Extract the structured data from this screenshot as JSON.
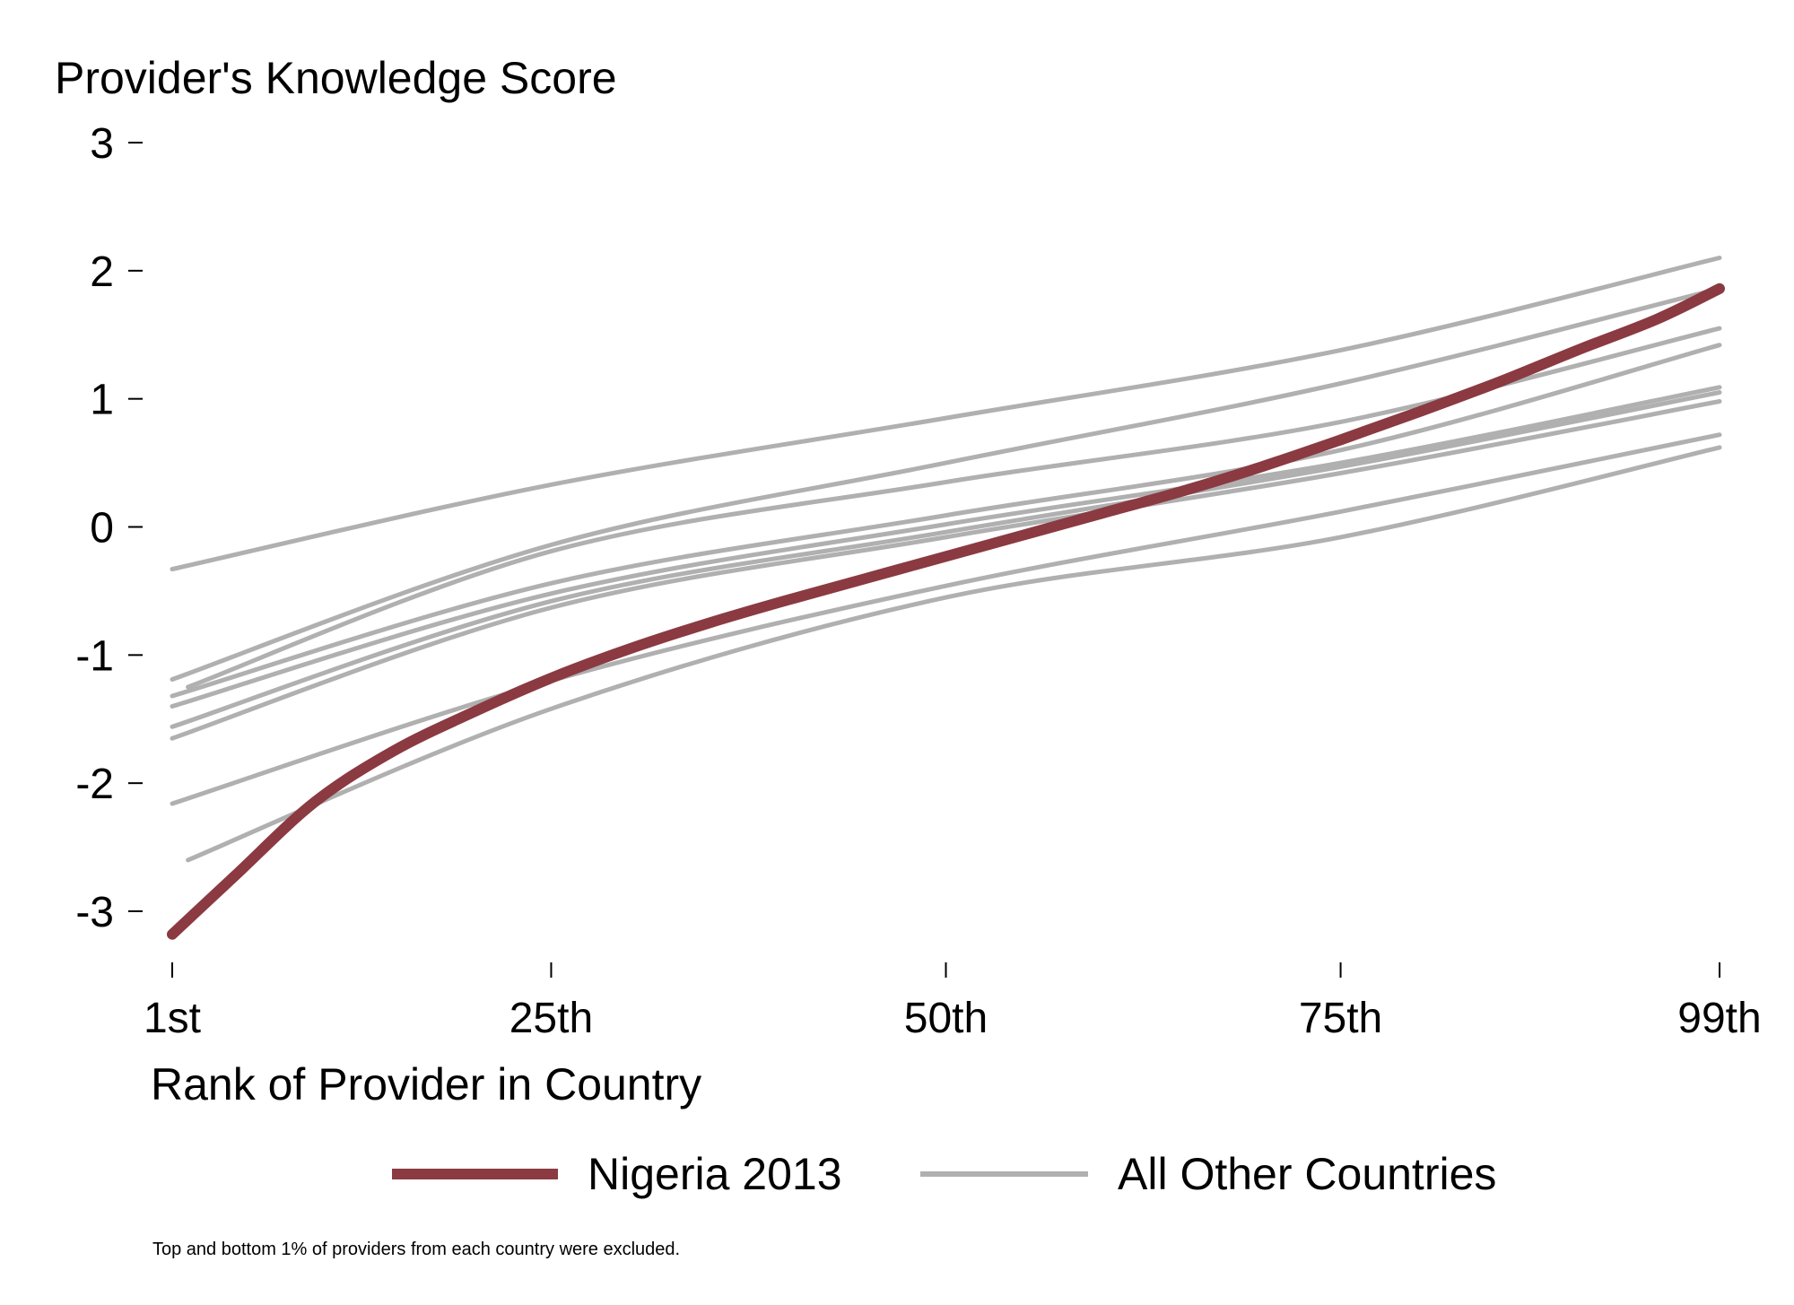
{
  "chart_data": {
    "type": "line",
    "ylabel": "Provider's Knowledge Score",
    "xlabel": "Rank of Provider in Country",
    "note": "Top and bottom 1% of providers from each country were excluded.",
    "x_ticks": [
      {
        "value": 1,
        "label": "1st"
      },
      {
        "value": 25,
        "label": "25th"
      },
      {
        "value": 50,
        "label": "50th"
      },
      {
        "value": 75,
        "label": "75th"
      },
      {
        "value": 99,
        "label": "99th"
      }
    ],
    "y_ticks": [
      {
        "value": 3,
        "label": "3"
      },
      {
        "value": 2,
        "label": "2"
      },
      {
        "value": 1,
        "label": "1"
      },
      {
        "value": 0,
        "label": "0"
      },
      {
        "value": -1,
        "label": "-1"
      },
      {
        "value": -2,
        "label": "-2"
      },
      {
        "value": -3,
        "label": "-3"
      }
    ],
    "xlim": [
      1,
      99
    ],
    "ylim": [
      -3.3,
      3
    ],
    "grid": false,
    "legend_position": "bottom",
    "legend": [
      {
        "label": "Nigeria 2013",
        "color": "#8b3a41"
      },
      {
        "label": "All Other Countries",
        "color": "#b0b0b0"
      }
    ],
    "highlight_series": {
      "name": "Nigeria 2013",
      "color": "#8b3a41",
      "x": [
        1,
        5,
        10,
        15,
        20,
        25,
        30,
        35,
        40,
        45,
        50,
        55,
        60,
        65,
        70,
        75,
        80,
        85,
        90,
        95,
        99
      ],
      "y": [
        -3.18,
        -2.72,
        -2.15,
        -1.75,
        -1.45,
        -1.18,
        -0.95,
        -0.75,
        -0.57,
        -0.4,
        -0.23,
        -0.06,
        0.11,
        0.28,
        0.47,
        0.68,
        0.9,
        1.13,
        1.38,
        1.62,
        1.86
      ]
    },
    "other_series": [
      {
        "color": "#b0b0b0",
        "x": [
          1,
          25,
          50,
          75,
          99
        ],
        "y": [
          -0.33,
          0.33,
          0.85,
          1.38,
          2.1
        ]
      },
      {
        "color": "#b0b0b0",
        "x": [
          1,
          25,
          50,
          75,
          99
        ],
        "y": [
          -1.19,
          -0.14,
          0.5,
          1.12,
          1.86
        ]
      },
      {
        "color": "#b0b0b0",
        "x": [
          2,
          25,
          50,
          75,
          99
        ],
        "y": [
          -1.25,
          -0.19,
          0.35,
          0.82,
          1.55
        ]
      },
      {
        "color": "#b0b0b0",
        "x": [
          1,
          25,
          50,
          75,
          99
        ],
        "y": [
          -1.32,
          -0.44,
          0.09,
          0.6,
          1.42
        ]
      },
      {
        "color": "#b0b0b0",
        "x": [
          1,
          25,
          50,
          75,
          99
        ],
        "y": [
          -1.4,
          -0.52,
          0.02,
          0.5,
          1.09
        ]
      },
      {
        "color": "#b0b0b0",
        "x": [
          1,
          25,
          50,
          75,
          99
        ],
        "y": [
          -1.56,
          -0.58,
          -0.04,
          0.47,
          1.05
        ]
      },
      {
        "color": "#b0b0b0",
        "x": [
          1,
          25,
          50,
          75,
          99
        ],
        "y": [
          -1.65,
          -0.63,
          -0.08,
          0.42,
          0.98
        ]
      },
      {
        "color": "#b0b0b0",
        "x": [
          1,
          25,
          50,
          75,
          99
        ],
        "y": [
          -2.16,
          -1.2,
          -0.46,
          0.12,
          0.72
        ]
      },
      {
        "color": "#b0b0b0",
        "x": [
          2,
          25,
          50,
          75,
          99
        ],
        "y": [
          -2.6,
          -1.42,
          -0.55,
          -0.08,
          0.62
        ]
      }
    ]
  }
}
